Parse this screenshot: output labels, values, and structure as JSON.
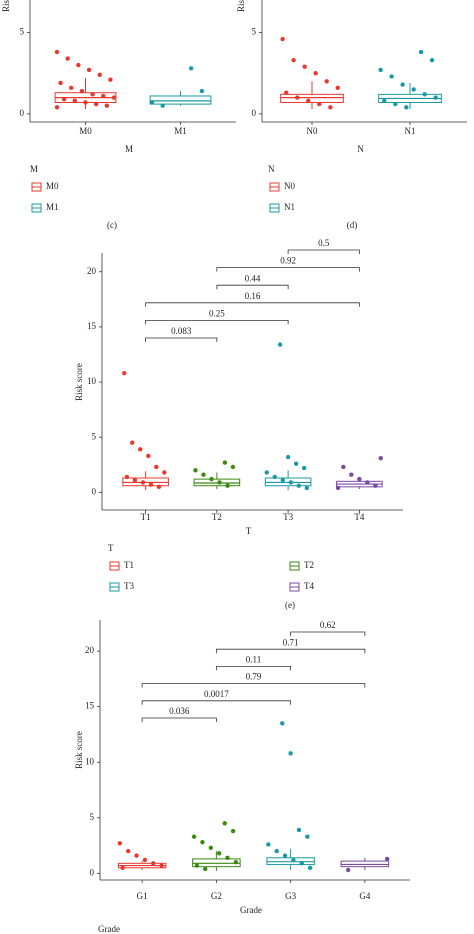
{
  "chart_data": [
    {
      "type": "box",
      "panel_label": "(c)",
      "ylabel": "Risk score",
      "xlabel": "M",
      "legend_title": "M",
      "ylim": [
        -0.5,
        7
      ],
      "yticks": [
        0,
        5
      ],
      "series": [
        {
          "name": "M0",
          "color": "#e8392f",
          "whislo": 0.3,
          "q1": 0.7,
          "median": 1.0,
          "q3": 1.3,
          "whishi": 2.2,
          "points": [
            3.8,
            3.4,
            3.0,
            2.7,
            2.4,
            2.1,
            1.9,
            1.6,
            1.4,
            1.2,
            1.1,
            1.0,
            0.9,
            0.8,
            0.7,
            0.6,
            0.5,
            0.4
          ]
        },
        {
          "name": "M1",
          "color": "#1a9aa6",
          "whislo": 0.5,
          "q1": 0.6,
          "median": 0.8,
          "q3": 1.1,
          "whishi": 1.4,
          "points": [
            2.8,
            1.4,
            0.7,
            0.5
          ]
        }
      ]
    },
    {
      "type": "box",
      "panel_label": "(d)",
      "ylabel": "Risk score",
      "xlabel": "N",
      "legend_title": "N",
      "ylim": [
        -0.5,
        7
      ],
      "yticks": [
        0,
        5
      ],
      "series": [
        {
          "name": "N0",
          "color": "#e8392f",
          "whislo": 0.3,
          "q1": 0.7,
          "median": 1.0,
          "q3": 1.2,
          "whishi": 2.0,
          "points": [
            4.6,
            3.3,
            2.9,
            2.5,
            2.0,
            1.6,
            1.3,
            1.0,
            0.8,
            0.6,
            0.4
          ]
        },
        {
          "name": "N1",
          "color": "#1a9aa6",
          "whislo": 0.3,
          "q1": 0.7,
          "median": 0.95,
          "q3": 1.2,
          "whishi": 1.9,
          "points": [
            3.8,
            3.3,
            2.7,
            2.3,
            1.8,
            1.5,
            1.2,
            1.0,
            0.8,
            0.6,
            0.4
          ]
        }
      ]
    },
    {
      "type": "box",
      "panel_label": "(e)",
      "ylabel": "Risk score",
      "xlabel": "T",
      "legend_title": "T",
      "ylim": [
        -1.6,
        21.7
      ],
      "yticks": [
        0,
        5,
        10,
        15,
        20
      ],
      "series": [
        {
          "name": "T1",
          "color": "#e8392f",
          "whislo": 0.2,
          "q1": 0.6,
          "median": 0.9,
          "q3": 1.3,
          "whishi": 1.9,
          "points": [
            10.8,
            4.5,
            3.9,
            3.3,
            2.3,
            1.8,
            1.4,
            1.1,
            0.9,
            0.7,
            0.5
          ]
        },
        {
          "name": "T2",
          "color": "#3a8a10",
          "whislo": 0.3,
          "q1": 0.6,
          "median": 0.85,
          "q3": 1.2,
          "whishi": 1.8,
          "points": [
            2.7,
            2.3,
            2.0,
            1.6,
            1.2,
            0.9,
            0.6
          ]
        },
        {
          "name": "T3",
          "color": "#1a9aa6",
          "whislo": 0.2,
          "q1": 0.6,
          "median": 0.9,
          "q3": 1.3,
          "whishi": 2.0,
          "points": [
            13.4,
            3.2,
            2.6,
            2.2,
            1.8,
            1.4,
            1.1,
            0.9,
            0.6,
            0.4
          ]
        },
        {
          "name": "T4",
          "color": "#7a4a9e",
          "whislo": 0.3,
          "q1": 0.5,
          "median": 0.75,
          "q3": 1.0,
          "whishi": 1.4,
          "points": [
            3.1,
            2.3,
            1.6,
            1.2,
            0.9,
            0.6,
            0.4
          ]
        }
      ],
      "comparisons": [
        {
          "pair": [
            "T1",
            "T2"
          ],
          "p": 0.083
        },
        {
          "pair": [
            "T1",
            "T3"
          ],
          "p": 0.25
        },
        {
          "pair": [
            "T1",
            "T4"
          ],
          "p": 0.16
        },
        {
          "pair": [
            "T2",
            "T3"
          ],
          "p": 0.44
        },
        {
          "pair": [
            "T2",
            "T4"
          ],
          "p": 0.92
        },
        {
          "pair": [
            "T3",
            "T4"
          ],
          "p": 0.5
        }
      ]
    },
    {
      "type": "box",
      "ylabel": "Risk score",
      "xlabel": "Grade",
      "legend_title": "Grade",
      "ylim": [
        -0.6,
        22.8
      ],
      "yticks": [
        0,
        5,
        10,
        15,
        20
      ],
      "series": [
        {
          "name": "G1",
          "color": "#e8392f",
          "whislo": 0.3,
          "q1": 0.5,
          "median": 0.7,
          "q3": 0.9,
          "whishi": 1.1,
          "points": [
            2.7,
            2.0,
            1.6,
            1.2,
            0.9,
            0.7,
            0.5
          ]
        },
        {
          "name": "G2",
          "color": "#3a8a10",
          "whislo": 0.2,
          "q1": 0.6,
          "median": 0.9,
          "q3": 1.3,
          "whishi": 2.0,
          "points": [
            4.5,
            3.8,
            3.3,
            2.8,
            2.3,
            1.8,
            1.4,
            1.0,
            0.7,
            0.4
          ]
        },
        {
          "name": "G3",
          "color": "#1a9aa6",
          "whislo": 0.3,
          "q1": 0.8,
          "median": 1.05,
          "q3": 1.4,
          "whishi": 2.2,
          "points": [
            13.5,
            10.8,
            3.9,
            3.3,
            2.6,
            2.0,
            1.6,
            1.2,
            0.9,
            0.5
          ]
        },
        {
          "name": "G4",
          "color": "#7a4a9e",
          "whislo": 0.3,
          "q1": 0.6,
          "median": 0.8,
          "q3": 1.1,
          "whishi": 1.4,
          "points": [
            1.3,
            0.3
          ]
        }
      ],
      "comparisons": [
        {
          "pair": [
            "G1",
            "G2"
          ],
          "p": 0.036
        },
        {
          "pair": [
            "G1",
            "G3"
          ],
          "p": 0.0017
        },
        {
          "pair": [
            "G1",
            "G4"
          ],
          "p": 0.79
        },
        {
          "pair": [
            "G2",
            "G3"
          ],
          "p": 0.11
        },
        {
          "pair": [
            "G2",
            "G4"
          ],
          "p": 0.71
        },
        {
          "pair": [
            "G3",
            "G4"
          ],
          "p": 0.62
        }
      ]
    }
  ]
}
